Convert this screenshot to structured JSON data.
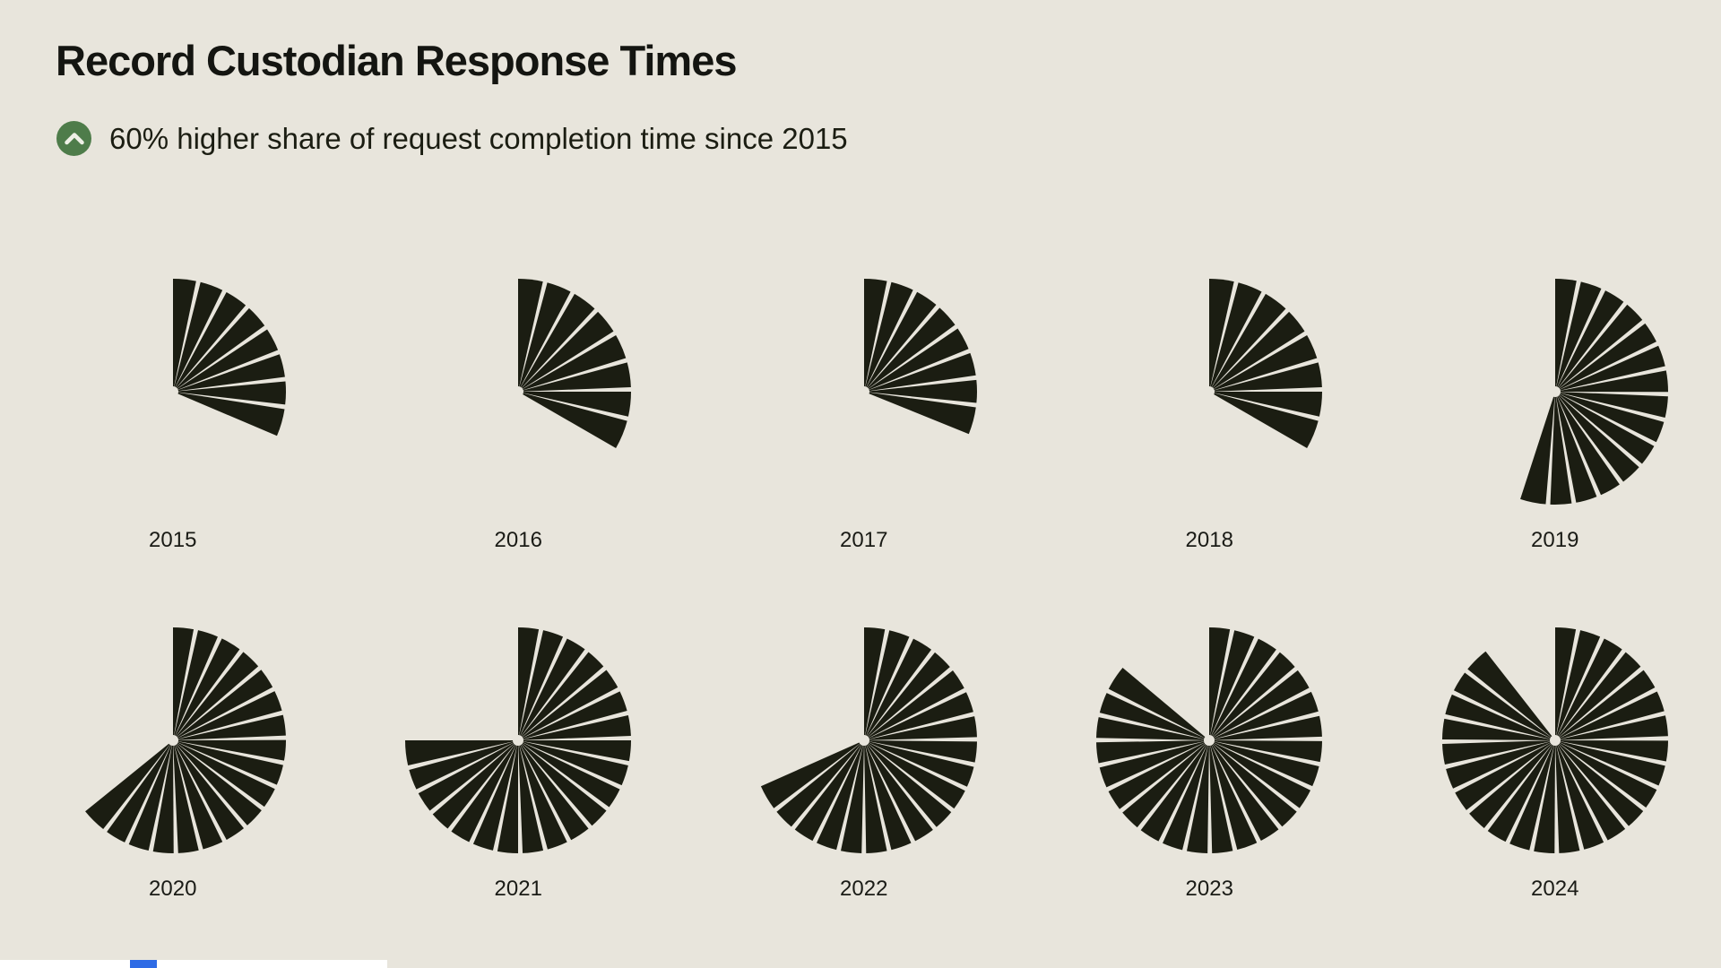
{
  "header": {
    "title": "Record Custodian Response Times",
    "subtitle": "60% higher share of request completion time since 2015",
    "trend_icon": "chevron-up-icon"
  },
  "colors": {
    "background": "#e8e5dc",
    "ink": "#1b1d12",
    "badge_green": "#4e7c4a",
    "badge_glyph": "#eef0e6",
    "label": "#1a1b16",
    "bottom_strip": "#ffffff",
    "bottom_chip_blue": "#2e6be5"
  },
  "chart_data": {
    "type": "pie",
    "variant": "fan small multiples, one per year, wedges sweep clockwise from 12 o'clock",
    "title": "Record Custodian Response Times",
    "subtitle": "60% higher share of request completion time since 2015",
    "legend_position": "none",
    "grid": "off",
    "layout": {
      "rows": 2,
      "cols": 5
    },
    "approx_slots_per_circle": 28,
    "categories": [
      "2015",
      "2016",
      "2017",
      "2018",
      "2019",
      "2020",
      "2021",
      "2022",
      "2023",
      "2024"
    ],
    "years": [
      {
        "year": "2015",
        "wedges": 8,
        "sweep_deg": 113,
        "share_pct": 31
      },
      {
        "year": "2016",
        "wedges": 8,
        "sweep_deg": 120,
        "share_pct": 33
      },
      {
        "year": "2017",
        "wedges": 8,
        "sweep_deg": 112,
        "share_pct": 31
      },
      {
        "year": "2018",
        "wedges": 8,
        "sweep_deg": 120,
        "share_pct": 33
      },
      {
        "year": "2019",
        "wedges": 15,
        "sweep_deg": 198,
        "share_pct": 55
      },
      {
        "year": "2020",
        "wedges": 18,
        "sweep_deg": 231,
        "share_pct": 64
      },
      {
        "year": "2021",
        "wedges": 21,
        "sweep_deg": 270,
        "share_pct": 75
      },
      {
        "year": "2022",
        "wedges": 19,
        "sweep_deg": 246,
        "share_pct": 68
      },
      {
        "year": "2023",
        "wedges": 24,
        "sweep_deg": 310,
        "share_pct": 86
      },
      {
        "year": "2024",
        "wedges": 25,
        "sweep_deg": 322,
        "share_pct": 89
      }
    ]
  }
}
